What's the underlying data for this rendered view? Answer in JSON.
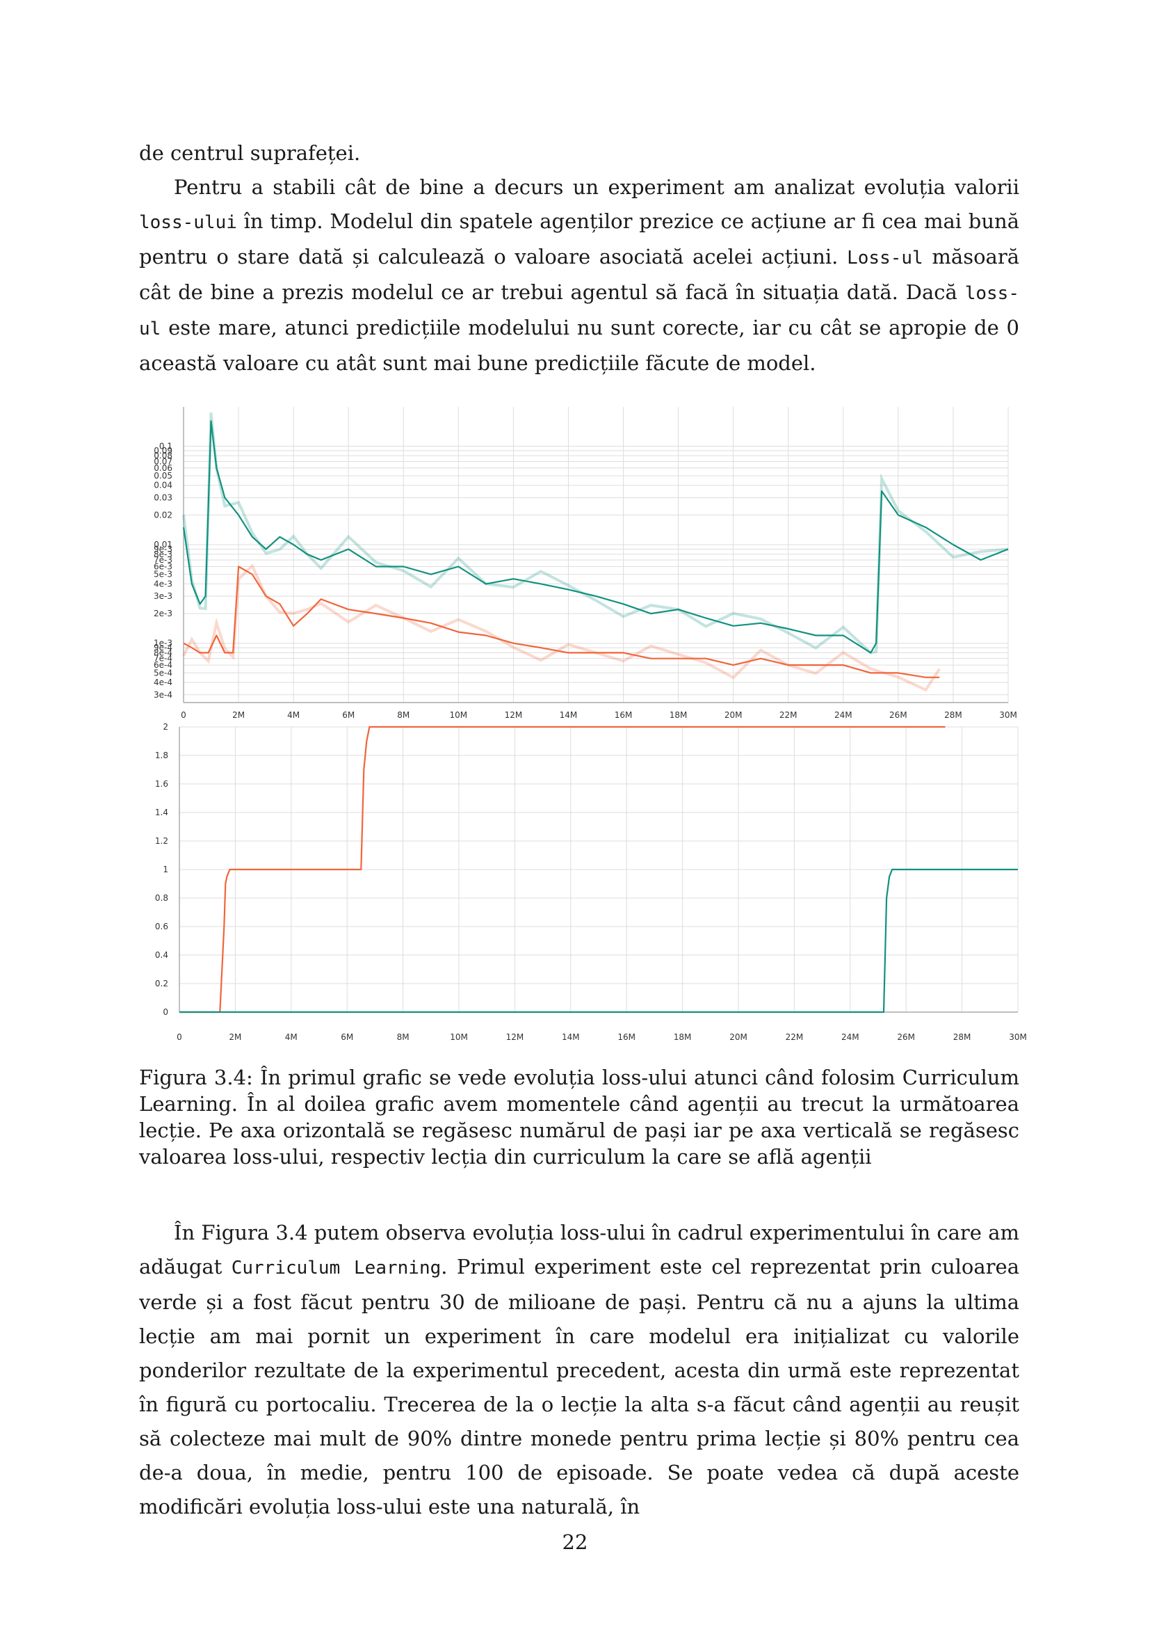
{
  "paragraphs": {
    "p1": "de centrul suprafeței.",
    "p2": {
      "t1": "Pentru a stabili cât de bine a decurs un experiment am analizat evoluția valorii ",
      "c1": "loss-ului",
      "t2": " în timp. Modelul din spatele agenților prezice ce acțiune ar fi cea mai bună pentru o stare dată și calculează o valoare asociată acelei acțiuni. ",
      "c2": "Loss-ul",
      "t3": " măsoară cât de bine a prezis modelul ce ar trebui agentul să facă în situația dată. Dacă ",
      "c3": "loss-ul",
      "t4": " este mare, atunci predicțiile modelului nu sunt corecte, iar cu cât se apropie de 0 această valoare cu atât sunt mai bune predicțiile făcute de model."
    },
    "p3": {
      "t1": "În Figura 3.4 putem observa evoluția loss-ului în cadrul experimentului în care am adăugat ",
      "c1": "Curriculum Learning",
      "t2": ". Primul experiment este cel reprezentat prin culoarea verde și a fost făcut pentru 30 de milioane de pași. Pentru că nu a ajuns la ultima lecție am mai pornit un experiment în care modelul era inițializat cu valorile ponderilor rezultate de la experimentul precedent, acesta din urmă este reprezentat în figură cu portocaliu. Trecerea de la o lecție la alta s-a făcut când agenții au reușit să colecteze mai mult de 90% dintre monede pentru prima lecție și 80% pentru cea de-a doua, în medie, pentru 100 de episoade. Se poate vedea că după aceste modificări evoluția loss-ului este una naturală, în"
    }
  },
  "caption": "Figura 3.4: În primul grafic se vede evoluția loss-ului atunci când folosim Curriculum Learning. În al doilea grafic avem momentele când agenții au trecut la următoarea lecție. Pe axa orizontală se regăsesc numărul de pași iar pe axa verticală se regăsesc valoarea loss-ului, respectiv lecția din curriculum la care se află agenții",
  "page_number": "22",
  "colors": {
    "green": "#11917f",
    "orange": "#f0653a",
    "grid": "#dddddd"
  },
  "chart_data": [
    {
      "type": "line",
      "title": "",
      "xlabel": "",
      "ylabel": "",
      "y_scale": "log",
      "xlim": [
        0,
        30000000
      ],
      "ylim": [
        0.00025,
        0.25
      ],
      "x_ticks": [
        "0",
        "2M",
        "4M",
        "6M",
        "8M",
        "10M",
        "12M",
        "14M",
        "16M",
        "18M",
        "20M",
        "22M",
        "24M",
        "26M",
        "28M",
        "30M"
      ],
      "y_ticks": [
        {
          "v": 0.1,
          "label": "0.1"
        },
        {
          "v": 0.09,
          "label": "0.09"
        },
        {
          "v": 0.08,
          "label": "0.08"
        },
        {
          "v": 0.07,
          "label": "0.07"
        },
        {
          "v": 0.06,
          "label": "0.06"
        },
        {
          "v": 0.05,
          "label": "0.05"
        },
        {
          "v": 0.04,
          "label": "0.04"
        },
        {
          "v": 0.03,
          "label": "0.03"
        },
        {
          "v": 0.02,
          "label": "0.02"
        },
        {
          "v": 0.01,
          "label": "0.01"
        },
        {
          "v": 0.009,
          "label": "9e-3"
        },
        {
          "v": 0.008,
          "label": "8e-3"
        },
        {
          "v": 0.007,
          "label": "7e-3"
        },
        {
          "v": 0.006,
          "label": "6e-3"
        },
        {
          "v": 0.005,
          "label": "5e-3"
        },
        {
          "v": 0.004,
          "label": "4e-3"
        },
        {
          "v": 0.003,
          "label": "3e-3"
        },
        {
          "v": 0.002,
          "label": "2e-3"
        },
        {
          "v": 0.001,
          "label": "1e-3"
        },
        {
          "v": 0.0009,
          "label": "9e-4"
        },
        {
          "v": 0.0008,
          "label": "8e-4"
        },
        {
          "v": 0.0007,
          "label": "7e-4"
        },
        {
          "v": 0.0006,
          "label": "6e-4"
        },
        {
          "v": 0.0005,
          "label": "5e-4"
        },
        {
          "v": 0.0004,
          "label": "4e-4"
        },
        {
          "v": 0.0003,
          "label": "3e-4"
        }
      ],
      "series": [
        {
          "color": "#11917f",
          "x": [
            0,
            0.3,
            0.6,
            0.8,
            1.0,
            1.2,
            1.5,
            2,
            2.5,
            3,
            3.5,
            4,
            4.5,
            5,
            6,
            7,
            8,
            9,
            10,
            11,
            12,
            13,
            14,
            15,
            16,
            17,
            18,
            19,
            20,
            21,
            22,
            23,
            24,
            25,
            25.2,
            25.4,
            26,
            27,
            28,
            29,
            30
          ],
          "y": [
            0.015,
            0.004,
            0.0025,
            0.003,
            0.18,
            0.06,
            0.03,
            0.02,
            0.012,
            0.009,
            0.012,
            0.01,
            0.008,
            0.007,
            0.009,
            0.006,
            0.006,
            0.005,
            0.006,
            0.004,
            0.0045,
            0.004,
            0.0035,
            0.003,
            0.0025,
            0.002,
            0.0022,
            0.0018,
            0.0015,
            0.0016,
            0.0014,
            0.0012,
            0.0012,
            0.0008,
            0.001,
            0.035,
            0.02,
            0.015,
            0.01,
            0.007,
            0.009
          ]
        },
        {
          "color": "#f0653a",
          "x": [
            0,
            0.3,
            0.6,
            0.9,
            1.2,
            1.5,
            1.8,
            2,
            2.5,
            3,
            3.5,
            4,
            4.5,
            5,
            6,
            7,
            8,
            9,
            10,
            11,
            12,
            13,
            14,
            15,
            16,
            17,
            18,
            19,
            20,
            21,
            22,
            23,
            24,
            25,
            26,
            27,
            27.5
          ],
          "y": [
            0.001,
            0.0009,
            0.0008,
            0.0008,
            0.0012,
            0.0008,
            0.0008,
            0.006,
            0.005,
            0.003,
            0.0025,
            0.0015,
            0.002,
            0.0028,
            0.0022,
            0.002,
            0.0018,
            0.0016,
            0.0013,
            0.0012,
            0.001,
            0.0009,
            0.0008,
            0.0008,
            0.0008,
            0.0007,
            0.0007,
            0.0007,
            0.0006,
            0.0007,
            0.0006,
            0.0006,
            0.0006,
            0.0005,
            0.0005,
            0.00045,
            0.00045
          ]
        }
      ]
    },
    {
      "type": "line",
      "title": "",
      "xlabel": "",
      "ylabel": "",
      "xlim": [
        0,
        30000000
      ],
      "ylim": [
        0,
        2
      ],
      "x_ticks": [
        "0",
        "2M",
        "4M",
        "6M",
        "8M",
        "10M",
        "12M",
        "14M",
        "16M",
        "18M",
        "20M",
        "22M",
        "24M",
        "26M",
        "28M",
        "30M"
      ],
      "y_ticks": [
        "0",
        "0.2",
        "0.4",
        "0.6",
        "0.8",
        "1",
        "1.2",
        "1.4",
        "1.6",
        "1.8",
        "2"
      ],
      "series": [
        {
          "color": "#f0653a",
          "x": [
            0,
            1.45,
            1.6,
            1.65,
            1.7,
            1.8,
            2,
            6.5,
            6.6,
            6.7,
            6.8,
            27.4
          ],
          "y": [
            0,
            0,
            0.6,
            0.9,
            0.95,
            1,
            1,
            1,
            1.7,
            1.9,
            2,
            2
          ]
        },
        {
          "color": "#11917f",
          "x": [
            0,
            25.2,
            25.3,
            25.4,
            25.5,
            30
          ],
          "y": [
            0,
            0,
            0.8,
            0.95,
            1,
            1
          ]
        }
      ]
    }
  ]
}
